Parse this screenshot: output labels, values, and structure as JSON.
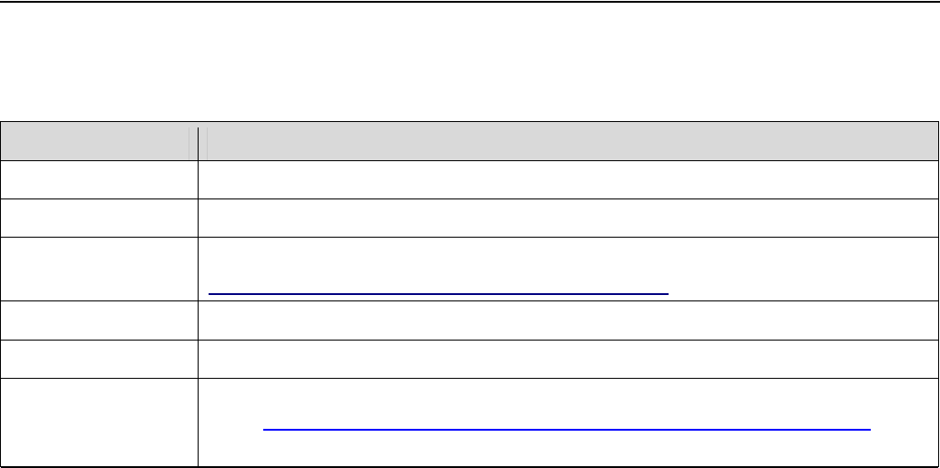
{
  "colors": {
    "header_bg": "#d9d9d9",
    "visited_link": "#000080",
    "link": "#0000ff"
  },
  "table": {
    "rows": [
      {
        "link": false
      },
      {
        "link": false
      },
      {
        "link": true,
        "link_color": "#000080"
      },
      {
        "link": false
      },
      {
        "link": false
      },
      {
        "link": true,
        "link_color": "#0000ff"
      }
    ]
  }
}
